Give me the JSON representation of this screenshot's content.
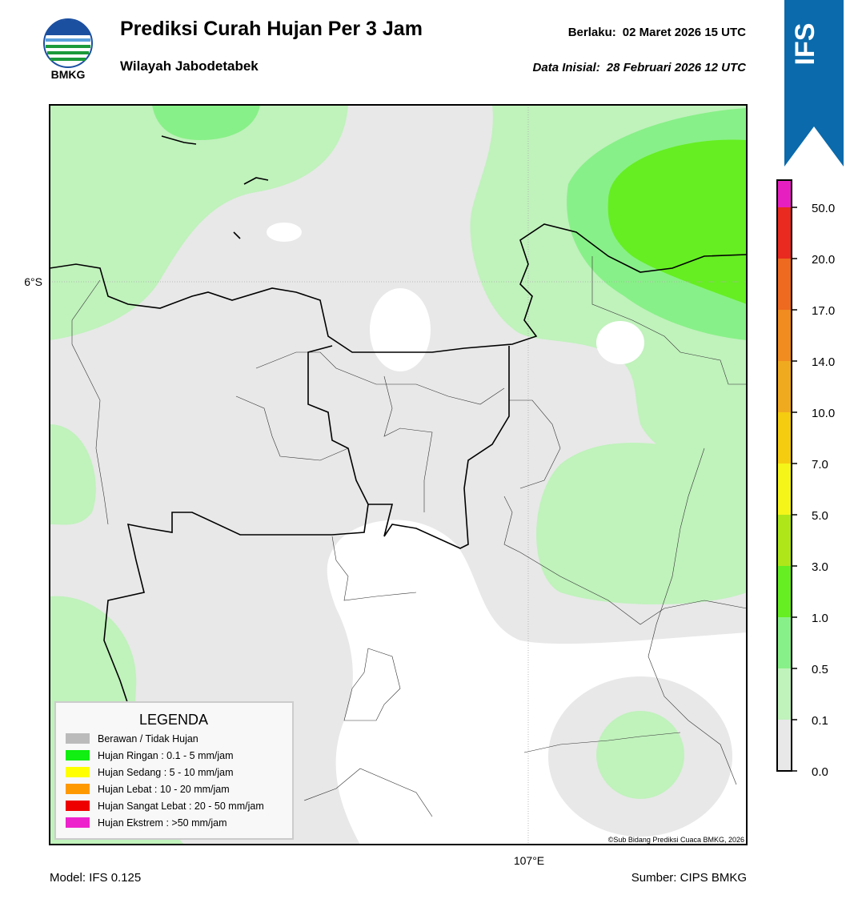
{
  "logo": "BMKG",
  "header": {
    "title": "Prediksi Curah Hujan Per 3 Jam",
    "subtitle": "Wilayah Jabodetabek",
    "valid_label": "Berlaku:",
    "valid": "02 Maret 2026 15 UTC",
    "init_label": "Data Inisial:",
    "init": "28 Februari 2026 12 UTC"
  },
  "badge": "IFS",
  "map": {
    "lat_label": "6°S",
    "lon_label": "107°E",
    "credit": "©Sub Bidang Prediksi Cuaca BMKG, 2026"
  },
  "colorbar": {
    "labels": [
      "0.0",
      "0.1",
      "0.5",
      "1.0",
      "3.0",
      "5.0",
      "7.0",
      "10.0",
      "14.0",
      "17.0",
      "20.0",
      "50.0"
    ],
    "colors": [
      "#e8e8e8",
      "#c0f2bc",
      "#88f088",
      "#66ee22",
      "#aee61a",
      "#f5f51a",
      "#f5cc10",
      "#f0aa20",
      "#f08c20",
      "#ee6a20",
      "#e82a20",
      "#e620c0"
    ]
  },
  "legend": {
    "title": "LEGENDA",
    "items": [
      {
        "label": "Berawan / Tidak Hujan",
        "color": "#bbbbbb"
      },
      {
        "label": "Hujan Ringan : 0.1 - 5 mm/jam",
        "color": "#11ee11"
      },
      {
        "label": "Hujan Sedang : 5 - 10 mm/jam",
        "color": "#ffff00"
      },
      {
        "label": "Hujan Lebat : 10 - 20 mm/jam",
        "color": "#ff9900"
      },
      {
        "label": "Hujan Sangat Lebat : 20 - 50 mm/jam",
        "color": "#ee0000"
      },
      {
        "label": "Hujan Ekstrem : >50 mm/jam",
        "color": "#ee22cc"
      }
    ]
  },
  "footer": {
    "model": "Model: IFS 0.125",
    "source": "Sumber: CIPS BMKG"
  }
}
